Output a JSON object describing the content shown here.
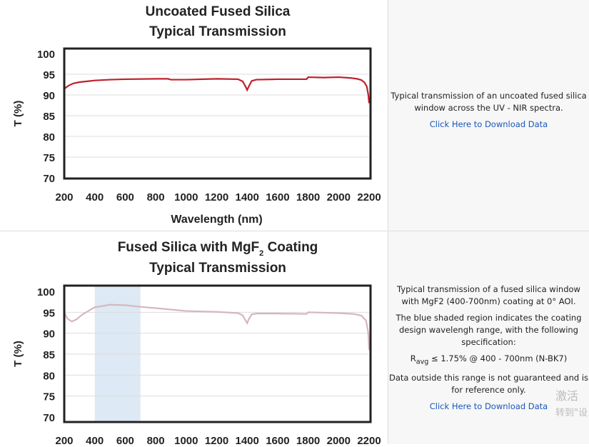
{
  "chart_data": [
    {
      "type": "line",
      "title": [
        "Uncoated Fused Silica",
        "Typical Transmission"
      ],
      "xlabel": "Wavelength (nm)",
      "ylabel": "T (%)",
      "xlim": [
        200,
        2200
      ],
      "ylim": [
        70,
        100
      ],
      "xticks": [
        200,
        400,
        600,
        800,
        1000,
        1200,
        1400,
        1600,
        1800,
        2000,
        2200
      ],
      "yticks": [
        100,
        95,
        90,
        85,
        80,
        75,
        70
      ],
      "grid": "horizontal",
      "color": "#c0202a",
      "x": [
        200,
        230,
        260,
        300,
        400,
        500,
        600,
        800,
        880,
        900,
        1000,
        1200,
        1340,
        1370,
        1390,
        1400,
        1410,
        1430,
        1460,
        1600,
        1790,
        1800,
        1900,
        2000,
        2080,
        2120,
        2150,
        2170,
        2185,
        2195,
        2200
      ],
      "y": [
        91.5,
        92.3,
        92.8,
        93.1,
        93.5,
        93.7,
        93.8,
        93.9,
        93.9,
        93.7,
        93.7,
        93.9,
        93.8,
        93.3,
        92.0,
        91.2,
        92.0,
        93.4,
        93.7,
        93.8,
        93.8,
        94.3,
        94.2,
        94.3,
        94.1,
        93.9,
        93.6,
        93.0,
        92.0,
        90.0,
        88.0
      ]
    },
    {
      "type": "line",
      "title": [
        "Fused Silica with MgF",
        "2",
        " Coating",
        "Typical Transmission"
      ],
      "xlabel": "",
      "ylabel": "T (%)",
      "xlim": [
        200,
        2200
      ],
      "ylim": [
        70,
        100
      ],
      "xticks": [
        200,
        400,
        600,
        800,
        1000,
        1200,
        1400,
        1600,
        1800,
        2000,
        2200
      ],
      "yticks": [
        100,
        95,
        90,
        85,
        80,
        75,
        70
      ],
      "grid": "horizontal",
      "color": "#d5b7be",
      "shaded_region": {
        "x": [
          400,
          700
        ],
        "color": "#dde9f4"
      },
      "x": [
        200,
        220,
        250,
        280,
        320,
        400,
        500,
        600,
        700,
        800,
        1000,
        1200,
        1340,
        1370,
        1390,
        1400,
        1410,
        1430,
        1460,
        1600,
        1790,
        1800,
        2000,
        2100,
        2150,
        2180,
        2195,
        2200
      ],
      "y": [
        95.0,
        93.5,
        92.8,
        93.3,
        94.5,
        96.2,
        96.8,
        96.7,
        96.3,
        96.0,
        95.3,
        95.1,
        94.8,
        94.3,
        93.0,
        92.4,
        93.3,
        94.5,
        94.7,
        94.7,
        94.6,
        95.0,
        94.8,
        94.6,
        94.2,
        93.0,
        90.0,
        86.0
      ]
    }
  ],
  "panels": [
    {
      "description": [
        "Typical transmission of an uncoated fused silica window across the UV - NIR spectra."
      ],
      "link": "Click Here to Download Data"
    },
    {
      "description": [
        "Typical transmission of a fused silica window with MgF2 (400-700nm) coating at 0° AOI.",
        "The blue shaded region indicates the coating design wavelengh range, with the following specification:"
      ],
      "spec": {
        "r": "R",
        "sub": "avg",
        "rest": " ≤ 1.75% @ 400 - 700nm (N-BK7)"
      },
      "note": "Data outside this range is not guaranteed and is for reference only.",
      "link": "Click Here to Download Data"
    }
  ],
  "watermark": [
    "激活",
    "转到\"设"
  ]
}
